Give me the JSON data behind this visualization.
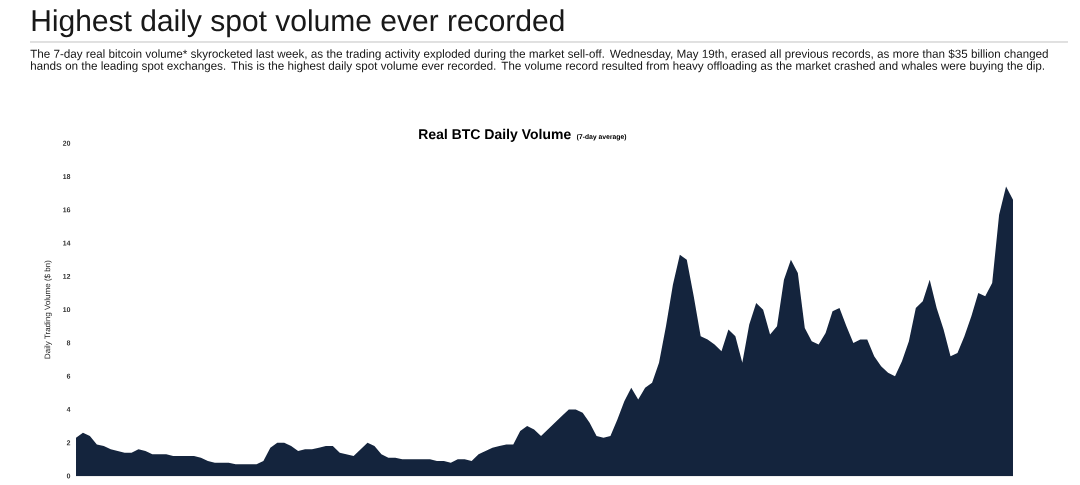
{
  "chart_data": {
    "type": "area",
    "title": "Real BTC Daily Volume",
    "subtitle": "(7-day average)",
    "ylabel": "Daily Trading Volume ($ bn)",
    "annotations": [
      "Highest daily spot volume ever recorded",
      "The 7-day real bitcoin volume* skyrocketed last week, as the trading activity exploded during the market sell-off. Wednesday, May 19th, erased all previous records, as more than $35 billion changed hands on the leading spot exchanges. This is the highest daily spot volume ever recorded. The volume record resulted from heavy offloading as the market crashed and whales were buying the dip."
    ],
    "categories": [
      null,
      null,
      null,
      null,
      null,
      null,
      null,
      null,
      null,
      null,
      null,
      null,
      null,
      null,
      null,
      null,
      null,
      null,
      null,
      null,
      null,
      null,
      null,
      null,
      null,
      null,
      null,
      null,
      null,
      null,
      null,
      null,
      null,
      null,
      null,
      null,
      null,
      null,
      null,
      null,
      null,
      null,
      null,
      null,
      null,
      null,
      null,
      null,
      null,
      null,
      null,
      null,
      null,
      null,
      null,
      null,
      null,
      null,
      null,
      null,
      null,
      null,
      null,
      null,
      null,
      null,
      null,
      null,
      null,
      null,
      null,
      null,
      null,
      null,
      null,
      null,
      null,
      null,
      null,
      null,
      null,
      null,
      null,
      null,
      null,
      null,
      null,
      null,
      null,
      null,
      null,
      null,
      null,
      null,
      null,
      null,
      null,
      null,
      null,
      null,
      null,
      null,
      null,
      null,
      null,
      null,
      null,
      null,
      null,
      null,
      null,
      null,
      null,
      null,
      null,
      null,
      null,
      null,
      null,
      null,
      null,
      null,
      null,
      null,
      null,
      null,
      null,
      null,
      null,
      null,
      null,
      null,
      null,
      null,
      null,
      null
    ],
    "values": [
      2.3,
      2.6,
      2.4,
      1.9,
      1.8,
      1.6,
      1.5,
      1.4,
      1.4,
      1.6,
      1.5,
      1.3,
      1.3,
      1.3,
      1.2,
      1.2,
      1.2,
      1.2,
      1.1,
      0.9,
      0.8,
      0.8,
      0.8,
      0.7,
      0.7,
      0.7,
      0.7,
      0.9,
      1.7,
      2.0,
      2.0,
      1.8,
      1.5,
      1.6,
      1.6,
      1.7,
      1.8,
      1.8,
      1.4,
      1.3,
      1.2,
      1.6,
      2.0,
      1.8,
      1.3,
      1.1,
      1.1,
      1.0,
      1.0,
      1.0,
      1.0,
      1.0,
      0.9,
      0.9,
      0.8,
      1.0,
      1.0,
      0.9,
      1.3,
      1.5,
      1.7,
      1.8,
      1.9,
      1.9,
      2.7,
      3.0,
      2.8,
      2.4,
      2.8,
      3.2,
      3.6,
      4.0,
      4.0,
      3.8,
      3.2,
      2.4,
      2.3,
      2.4,
      3.4,
      4.5,
      5.3,
      4.6,
      5.3,
      5.6,
      6.8,
      9.0,
      11.5,
      13.3,
      13.0,
      10.8,
      8.4,
      8.2,
      7.9,
      7.5,
      8.8,
      8.4,
      6.8,
      9.1,
      10.4,
      10.0,
      8.5,
      9.0,
      11.8,
      13.0,
      12.2,
      8.9,
      8.1,
      7.9,
      8.6,
      9.9,
      10.1,
      9.0,
      8.0,
      8.2,
      8.2,
      7.2,
      6.6,
      6.2,
      6.0,
      6.9,
      8.1,
      10.1,
      10.5,
      11.8,
      10.1,
      8.8,
      7.2,
      7.4,
      8.4,
      9.6,
      11.0,
      10.8,
      11.6,
      15.7,
      17.4,
      16.6
    ],
    "color": "#14243d",
    "ylim": [
      0,
      20
    ],
    "yticks": [
      0,
      2,
      4,
      6,
      8,
      10,
      12,
      14,
      16,
      18,
      20
    ],
    "tick_labels": "y"
  }
}
